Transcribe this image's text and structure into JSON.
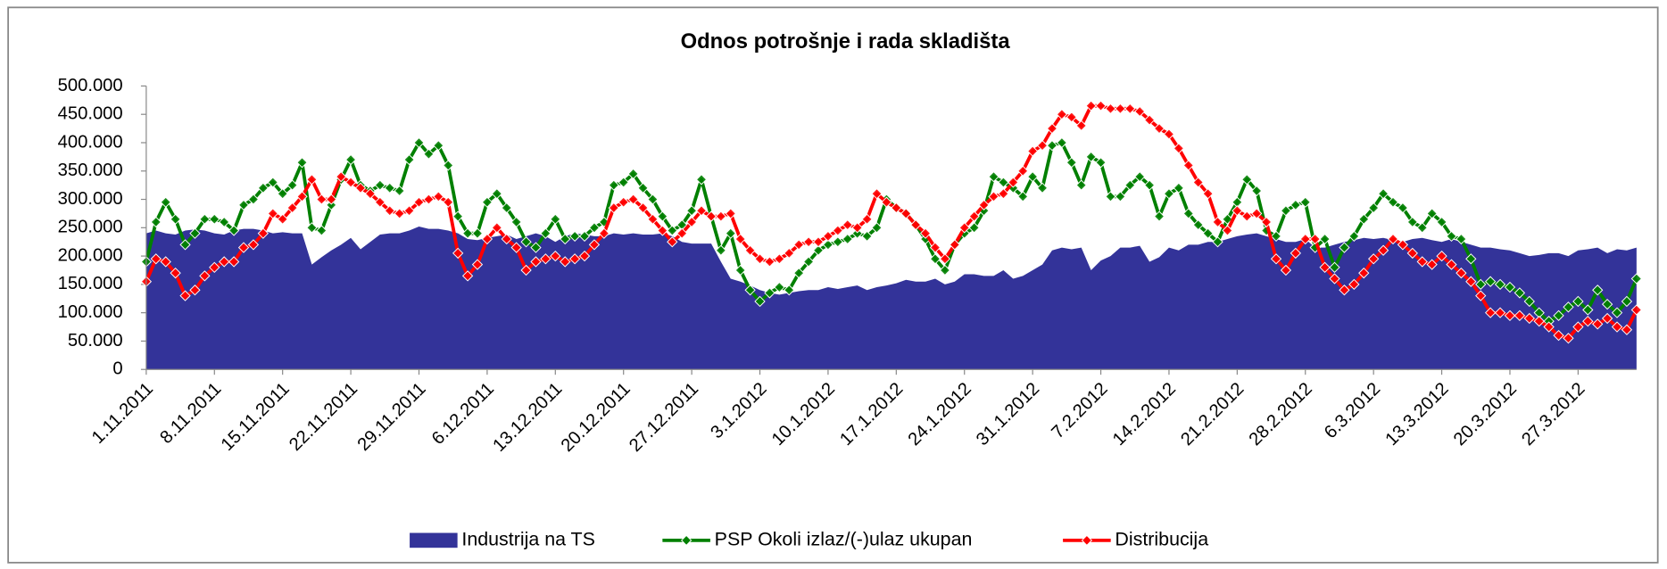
{
  "chart_data": {
    "type": "line",
    "title": "Odnos potrošnje i rada skladišta",
    "categories": [
      "1.11.2011",
      null,
      null,
      null,
      null,
      null,
      null,
      "8.11.2011",
      null,
      null,
      null,
      null,
      null,
      null,
      "15.11.2011",
      null,
      null,
      null,
      null,
      null,
      null,
      "22.11.2011",
      null,
      null,
      null,
      null,
      null,
      null,
      "29.11.2011",
      null,
      null,
      null,
      null,
      null,
      null,
      "6.12.2011",
      null,
      null,
      null,
      null,
      null,
      null,
      "13.12.2011",
      null,
      null,
      null,
      null,
      null,
      null,
      "20.12.2011",
      null,
      null,
      null,
      null,
      null,
      null,
      "27.12.2011",
      null,
      null,
      null,
      null,
      null,
      null,
      "3.1.2012",
      null,
      null,
      null,
      null,
      null,
      null,
      "10.1.2012",
      null,
      null,
      null,
      null,
      null,
      null,
      "17.1.2012",
      null,
      null,
      null,
      null,
      null,
      null,
      "24.1.2012",
      null,
      null,
      null,
      null,
      null,
      null,
      "31.1.2012",
      null,
      null,
      null,
      null,
      null,
      null,
      "7.2.2012",
      null,
      null,
      null,
      null,
      null,
      null,
      "14.2.2012",
      null,
      null,
      null,
      null,
      null,
      null,
      "21.2.2012",
      null,
      null,
      null,
      null,
      null,
      null,
      "28.2.2012",
      null,
      null,
      null,
      null,
      null,
      null,
      "6.3.2012",
      null,
      null,
      null,
      null,
      null,
      null,
      "13.3.2012",
      null,
      null,
      null,
      null,
      null,
      null,
      "20.3.2012",
      null,
      null,
      null,
      null,
      null,
      null,
      "27.3.2012",
      null,
      null,
      null,
      null,
      null,
      null
    ],
    "series": [
      {
        "name": "Industrija na TS",
        "kind": "area",
        "color": "#333399",
        "values": [
          240000,
          245000,
          240000,
          238000,
          245000,
          247000,
          245000,
          240000,
          238000,
          245000,
          248000,
          248000,
          245000,
          240000,
          242000,
          240000,
          240000,
          185000,
          198000,
          210000,
          220000,
          232000,
          212000,
          225000,
          238000,
          240000,
          240000,
          245000,
          252000,
          248000,
          248000,
          245000,
          240000,
          230000,
          228000,
          232000,
          235000,
          238000,
          230000,
          235000,
          240000,
          235000,
          225000,
          235000,
          240000,
          238000,
          235000,
          235000,
          240000,
          238000,
          240000,
          238000,
          238000,
          240000,
          235000,
          225000,
          222000,
          222000,
          222000,
          190000,
          160000,
          155000,
          148000,
          140000,
          135000,
          132000,
          135000,
          138000,
          140000,
          140000,
          145000,
          142000,
          145000,
          148000,
          140000,
          145000,
          148000,
          152000,
          158000,
          155000,
          155000,
          160000,
          150000,
          155000,
          168000,
          168000,
          165000,
          165000,
          175000,
          160000,
          165000,
          175000,
          185000,
          210000,
          215000,
          212000,
          215000,
          175000,
          192000,
          200000,
          215000,
          215000,
          218000,
          190000,
          198000,
          215000,
          210000,
          220000,
          220000,
          225000,
          225000,
          230000,
          235000,
          238000,
          240000,
          235000,
          230000,
          225000,
          225000,
          230000,
          215000,
          215000,
          220000,
          225000,
          228000,
          232000,
          230000,
          232000,
          228000,
          225000,
          230000,
          232000,
          228000,
          225000,
          230000,
          225000,
          220000,
          215000,
          215000,
          212000,
          210000,
          205000,
          200000,
          202000,
          205000,
          205000,
          200000,
          210000,
          212000,
          215000,
          205000,
          212000,
          210000,
          215000
        ]
      },
      {
        "name": "PSP Okoli izlaz/(-)ulaz ukupan",
        "kind": "line",
        "color": "#008000",
        "values": [
          190000,
          260000,
          295000,
          265000,
          220000,
          240000,
          265000,
          265000,
          260000,
          245000,
          290000,
          300000,
          320000,
          330000,
          310000,
          325000,
          365000,
          250000,
          245000,
          290000,
          335000,
          370000,
          325000,
          315000,
          325000,
          320000,
          315000,
          370000,
          400000,
          380000,
          395000,
          360000,
          270000,
          240000,
          240000,
          295000,
          310000,
          285000,
          260000,
          225000,
          215000,
          240000,
          265000,
          230000,
          235000,
          235000,
          250000,
          260000,
          325000,
          330000,
          345000,
          320000,
          300000,
          270000,
          245000,
          255000,
          280000,
          335000,
          270000,
          210000,
          240000,
          175000,
          140000,
          120000,
          135000,
          145000,
          140000,
          170000,
          190000,
          210000,
          220000,
          225000,
          230000,
          240000,
          235000,
          250000,
          300000,
          285000,
          275000,
          255000,
          230000,
          195000,
          175000,
          220000,
          240000,
          250000,
          280000,
          340000,
          330000,
          320000,
          305000,
          340000,
          320000,
          395000,
          400000,
          365000,
          325000,
          375000,
          365000,
          305000,
          305000,
          325000,
          340000,
          325000,
          270000,
          310000,
          320000,
          275000,
          255000,
          240000,
          225000,
          265000,
          295000,
          335000,
          315000,
          245000,
          235000,
          280000,
          290000,
          295000,
          215000,
          230000,
          180000,
          215000,
          235000,
          265000,
          285000,
          310000,
          295000,
          285000,
          260000,
          250000,
          275000,
          260000,
          235000,
          230000,
          195000,
          150000,
          155000,
          150000,
          145000,
          135000,
          120000,
          100000,
          85000,
          95000,
          110000,
          120000,
          105000,
          140000,
          115000,
          100000,
          120000,
          160000
        ]
      },
      {
        "name": "Distribucija",
        "kind": "line",
        "color": "#ff0000",
        "values": [
          155000,
          195000,
          190000,
          170000,
          130000,
          140000,
          165000,
          180000,
          190000,
          190000,
          215000,
          220000,
          240000,
          275000,
          265000,
          285000,
          305000,
          335000,
          300000,
          300000,
          340000,
          330000,
          320000,
          310000,
          295000,
          280000,
          275000,
          280000,
          295000,
          300000,
          305000,
          295000,
          205000,
          165000,
          185000,
          230000,
          250000,
          230000,
          215000,
          175000,
          190000,
          195000,
          200000,
          190000,
          195000,
          200000,
          220000,
          240000,
          285000,
          295000,
          300000,
          285000,
          265000,
          245000,
          225000,
          240000,
          260000,
          280000,
          270000,
          270000,
          275000,
          230000,
          210000,
          195000,
          190000,
          195000,
          205000,
          220000,
          225000,
          225000,
          235000,
          245000,
          255000,
          250000,
          265000,
          310000,
          295000,
          285000,
          275000,
          255000,
          240000,
          215000,
          195000,
          220000,
          250000,
          270000,
          290000,
          305000,
          310000,
          330000,
          350000,
          385000,
          395000,
          425000,
          450000,
          445000,
          430000,
          465000,
          465000,
          460000,
          460000,
          460000,
          455000,
          440000,
          425000,
          415000,
          390000,
          360000,
          330000,
          310000,
          260000,
          245000,
          280000,
          270000,
          275000,
          260000,
          195000,
          175000,
          205000,
          230000,
          230000,
          180000,
          160000,
          140000,
          150000,
          170000,
          195000,
          210000,
          230000,
          220000,
          205000,
          190000,
          185000,
          200000,
          185000,
          170000,
          155000,
          130000,
          100000,
          100000,
          95000,
          95000,
          90000,
          85000,
          75000,
          60000,
          55000,
          75000,
          85000,
          80000,
          90000,
          75000,
          70000,
          105000
        ]
      }
    ],
    "ylim": [
      0,
      500000
    ],
    "yticks": [
      0,
      {
        "value": 50000,
        "label": "50.000"
      },
      {
        "value": 100000,
        "label": "100.000"
      },
      {
        "value": 150000,
        "label": "150.000"
      },
      {
        "value": 200000,
        "label": "200.000"
      },
      {
        "value": 250000,
        "label": "250.000"
      },
      {
        "value": 300000,
        "label": "300.000"
      },
      {
        "value": 350000,
        "label": "350.000"
      },
      {
        "value": 400000,
        "label": "400.000"
      },
      {
        "value": 450000,
        "label": "450.000"
      },
      {
        "value": 500000,
        "label": "500.000"
      }
    ],
    "legend": "bottom"
  }
}
